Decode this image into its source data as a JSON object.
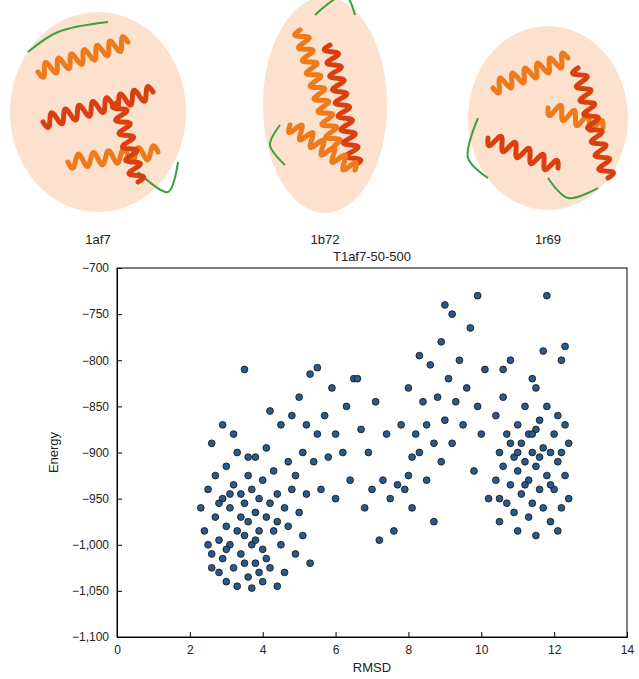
{
  "structures": [
    "1af7",
    "1b72",
    "1r69"
  ],
  "chart_data": {
    "type": "scatter",
    "title": "T1af7-50-500",
    "x_label": "RMSD",
    "y_label": "Energy",
    "color": "#2a5a8c",
    "marker": "circle",
    "xlim": [
      0,
      14
    ],
    "xticks": [
      0,
      2,
      4,
      6,
      8,
      10,
      12,
      14
    ],
    "ylim": [
      -1100,
      -700
    ],
    "yticks": [
      {
        "value": -1100,
        "label": "−1,100"
      },
      {
        "value": -1050,
        "label": "−1,050"
      },
      {
        "value": -1000,
        "label": "−1,000"
      },
      {
        "value": -950,
        "label": "−950"
      },
      {
        "value": -900,
        "label": "−900"
      },
      {
        "value": -850,
        "label": "−850"
      },
      {
        "value": -800,
        "label": "−800"
      },
      {
        "value": -750,
        "label": "−750"
      },
      {
        "value": -700,
        "label": "−700"
      }
    ],
    "x": [
      2.3,
      2.4,
      2.5,
      2.5,
      2.6,
      2.6,
      2.7,
      2.7,
      2.8,
      2.8,
      2.9,
      2.9,
      3.0,
      3.0,
      3.0,
      3.1,
      3.1,
      3.2,
      3.2,
      3.3,
      3.3,
      3.3,
      3.4,
      3.4,
      3.4,
      3.5,
      3.5,
      3.5,
      3.6,
      3.6,
      3.6,
      3.7,
      3.7,
      3.7,
      3.8,
      3.8,
      3.8,
      3.9,
      3.9,
      4.0,
      4.0,
      4.0,
      4.1,
      4.1,
      4.2,
      4.2,
      4.3,
      4.3,
      4.4,
      4.4,
      4.5,
      4.5,
      4.6,
      4.6,
      4.7,
      4.7,
      4.8,
      4.8,
      4.9,
      4.9,
      5.0,
      5.0,
      5.1,
      5.1,
      5.2,
      5.2,
      5.3,
      5.3,
      5.4,
      5.5,
      5.5,
      5.6,
      5.7,
      5.8,
      5.9,
      6.0,
      6.0,
      3.2,
      2.9,
      4.2,
      3.9,
      3.1,
      2.6,
      3.5,
      4.1,
      3.0,
      3.8,
      4.4,
      2.8,
      3.6,
      6.2,
      6.3,
      6.4,
      6.5,
      6.6,
      6.7,
      6.8,
      6.9,
      7.0,
      7.1,
      7.2,
      7.3,
      7.4,
      7.5,
      7.6,
      7.7,
      7.8,
      7.9,
      8.0,
      8.1,
      8.1,
      8.2,
      8.3,
      8.3,
      8.4,
      8.5,
      8.5,
      8.6,
      8.7,
      8.7,
      8.8,
      8.9,
      8.9,
      9.0,
      9.0,
      9.1,
      9.2,
      9.2,
      9.3,
      9.4,
      9.5,
      9.6,
      9.7,
      9.8,
      9.9,
      9.9,
      10.0,
      10.1,
      10.2,
      8.0,
      10.4,
      10.4,
      10.5,
      10.5,
      10.6,
      10.6,
      10.7,
      10.7,
      10.8,
      10.8,
      10.9,
      10.9,
      11.0,
      11.0,
      11.0,
      11.1,
      11.1,
      11.2,
      11.2,
      11.3,
      11.3,
      11.3,
      11.4,
      11.4,
      11.4,
      11.5,
      11.5,
      11.5,
      11.6,
      11.6,
      11.7,
      11.7,
      11.7,
      11.8,
      11.8,
      11.8,
      11.9,
      11.9,
      12.0,
      12.0,
      12.1,
      12.1,
      12.2,
      12.2,
      12.2,
      12.3,
      12.3,
      12.3,
      12.4,
      12.4,
      10.5,
      10.8,
      11.0,
      11.2,
      11.4,
      11.6,
      11.9,
      12.1,
      10.6,
      11.5
    ],
    "y": [
      -960,
      -985,
      -1000,
      -940,
      -890,
      -1010,
      -970,
      -925,
      -1030,
      -995,
      -950,
      -1015,
      -980,
      -915,
      -1040,
      -1000,
      -960,
      -935,
      -1025,
      -985,
      -900,
      -1045,
      -970,
      -945,
      -1010,
      -990,
      -955,
      -810,
      -1035,
      -925,
      -975,
      -1000,
      -940,
      -1047,
      -965,
      -905,
      -1020,
      -985,
      -950,
      -1040,
      -930,
      -1005,
      -970,
      -895,
      -1025,
      -955,
      -985,
      -920,
      -1045,
      -945,
      -1000,
      -870,
      -960,
      -1030,
      -910,
      -980,
      -940,
      -860,
      -1010,
      -925,
      -965,
      -840,
      -900,
      -990,
      -870,
      -945,
      -1020,
      -815,
      -910,
      -880,
      -808,
      -940,
      -860,
      -905,
      -830,
      -950,
      -880,
      -880,
      -870,
      -855,
      -1030,
      -945,
      -1025,
      -1020,
      -1015,
      -1005,
      -995,
      -975,
      -955,
      -905,
      -900,
      -850,
      -930,
      -820,
      -820,
      -875,
      -960,
      -900,
      -940,
      -845,
      -995,
      -930,
      -880,
      -950,
      -985,
      -935,
      -870,
      -940,
      -830,
      -905,
      -960,
      -880,
      -795,
      -900,
      -845,
      -930,
      -870,
      -805,
      -975,
      -890,
      -840,
      -910,
      -780,
      -740,
      -865,
      -820,
      -750,
      -890,
      -845,
      -800,
      -870,
      -830,
      -765,
      -920,
      -730,
      -850,
      -880,
      -810,
      -950,
      -925,
      -930,
      -860,
      -900,
      -975,
      -840,
      -915,
      -955,
      -880,
      -800,
      -935,
      -905,
      -965,
      -870,
      -985,
      -920,
      -890,
      -945,
      -850,
      -910,
      -970,
      -880,
      -930,
      -900,
      -820,
      -955,
      -875,
      -990,
      -915,
      -940,
      -865,
      -895,
      -960,
      -790,
      -925,
      -850,
      -730,
      -900,
      -975,
      -880,
      -940,
      -910,
      -860,
      -960,
      -800,
      -900,
      -785,
      -925,
      -870,
      -890,
      -950,
      -950,
      -890,
      -900,
      -935,
      -880,
      -905,
      -935,
      -985,
      -810,
      -830
    ]
  }
}
